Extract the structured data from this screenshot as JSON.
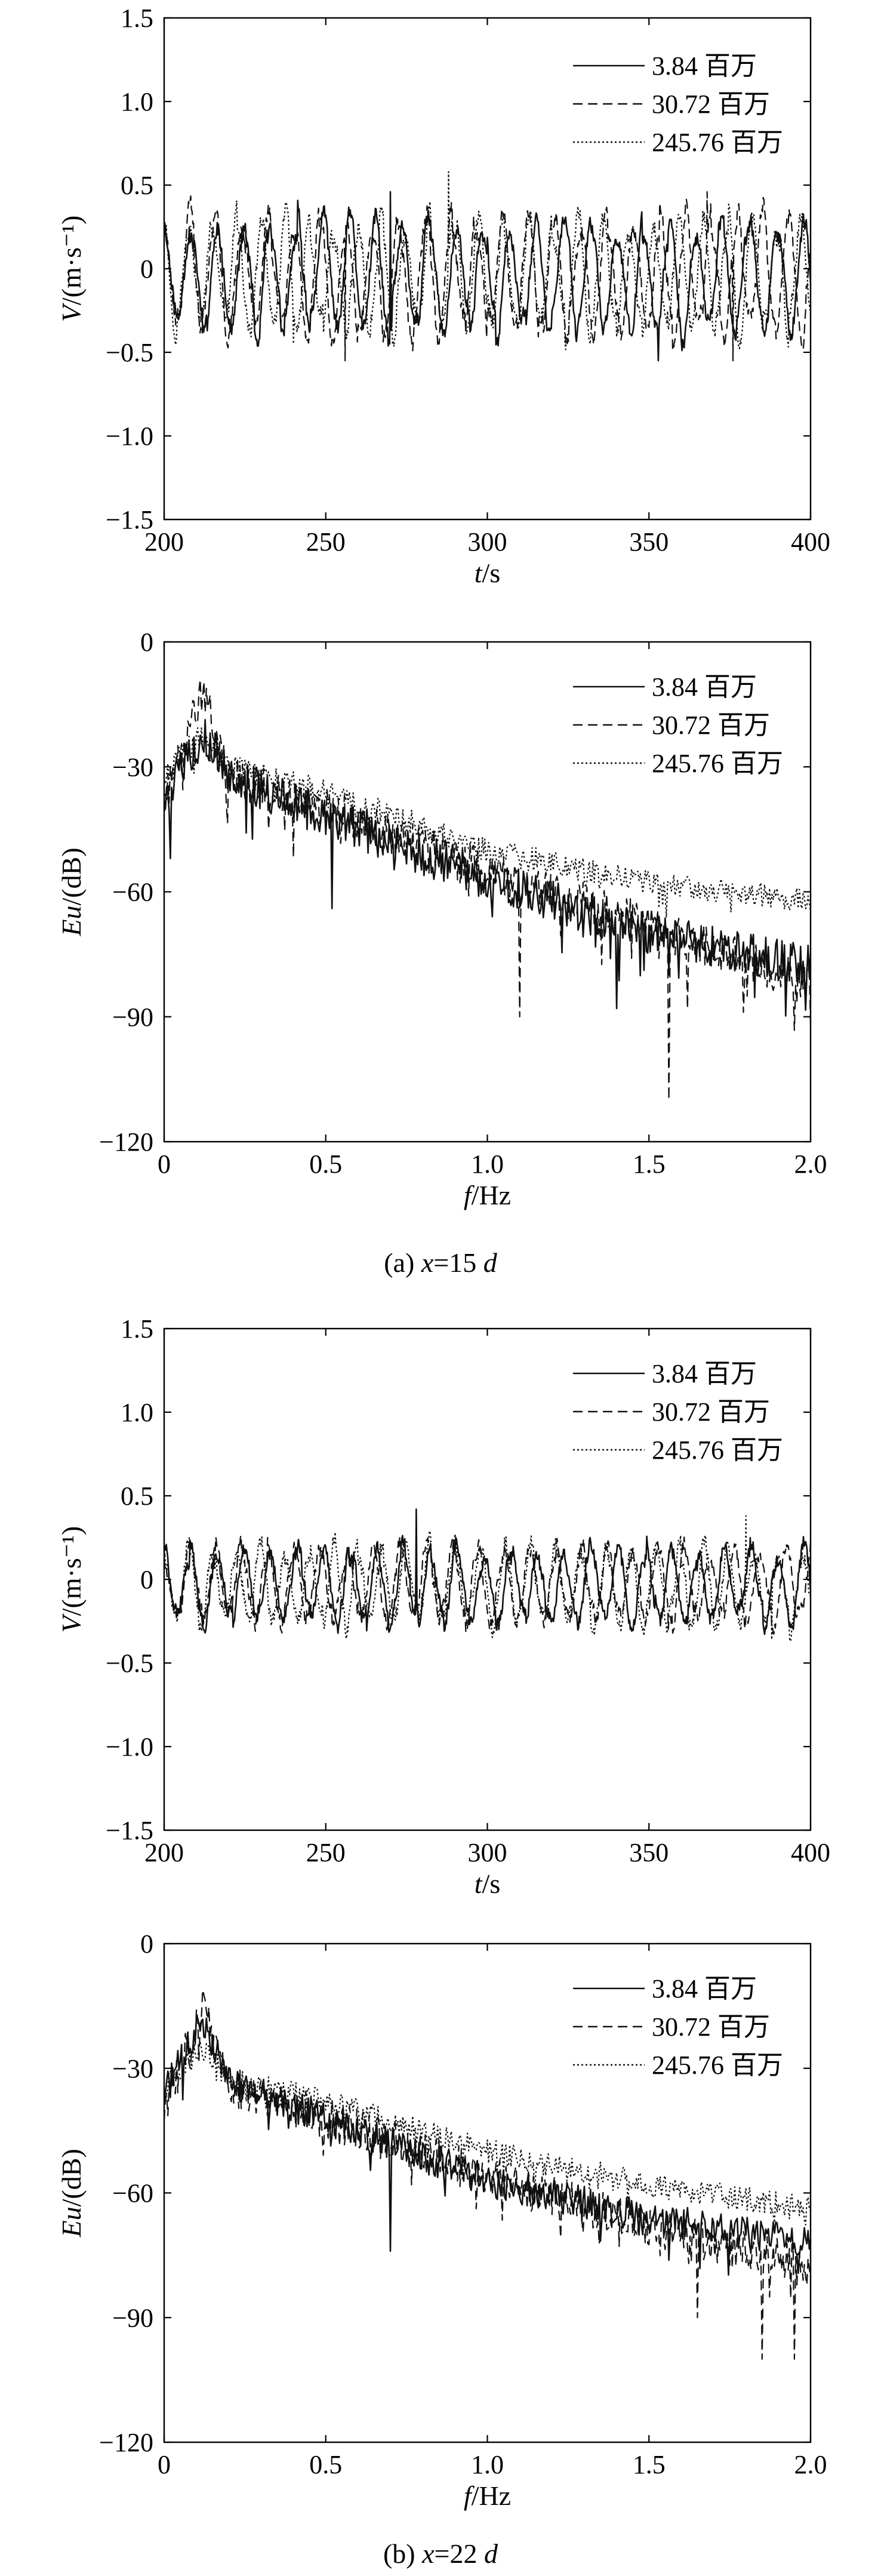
{
  "legend_labels": [
    "3.84 百万",
    "30.72 百万",
    "245.76 百万"
  ],
  "captions": [
    "(a) x=15 d",
    "(b) x=22 d"
  ],
  "chart_data": [
    {
      "type": "line",
      "panel": "a-time",
      "xlabel": "t/s",
      "ylabel": "V/(m·s⁻¹)",
      "xlim": [
        200,
        400
      ],
      "ylim": [
        -1.5,
        1.5
      ],
      "xticks": [
        "200",
        "250",
        "300",
        "350",
        "400"
      ],
      "yticks": [
        "1.5",
        "1.0",
        "0.5",
        "0",
        "−0.5",
        "−1.0",
        "−1.5"
      ],
      "legend": "top-right",
      "series": [
        {
          "name": "3.84 百万",
          "style": "solid",
          "x_range": [
            200,
            400
          ],
          "amplitude": 0.38,
          "period": 8.3,
          "seed": 11,
          "peaks": [
            {
              "x": 270,
              "y": 0.46
            },
            {
              "x": 353,
              "y": -0.55
            }
          ]
        },
        {
          "name": "30.72 百万",
          "style": "dashed",
          "x_range": [
            200,
            400
          ],
          "amplitude": 0.4,
          "period": 8.0,
          "seed": 23,
          "peaks": [
            {
              "x": 256,
              "y": -0.55
            },
            {
              "x": 368,
              "y": 0.46
            },
            {
              "x": 376,
              "y": -0.55
            }
          ]
        },
        {
          "name": "245.76 百万",
          "style": "dotted",
          "x_range": [
            200,
            400
          ],
          "amplitude": 0.37,
          "period": 7.6,
          "seed": 37,
          "peaks": [
            {
              "x": 288,
              "y": 0.58
            },
            {
              "x": 240,
              "y": -0.45
            }
          ]
        }
      ]
    },
    {
      "type": "line",
      "panel": "a-spectrum",
      "xlabel": "f/Hz",
      "ylabel": "Eu/(dB)",
      "xlim": [
        0,
        2.0
      ],
      "ylim": [
        -120,
        0
      ],
      "xticks": [
        "0",
        "0.5",
        "1.0",
        "1.5",
        "2.0"
      ],
      "yticks": [
        "0",
        "−30",
        "−60",
        "−90",
        "−120"
      ],
      "legend": "top-right",
      "series": [
        {
          "name": "3.84 百万",
          "style": "solid",
          "x_range": [
            0,
            2.0
          ],
          "levels": [
            [
              0,
              -38
            ],
            [
              0.12,
              -22
            ],
            [
              0.2,
              -32
            ],
            [
              0.5,
              -42
            ],
            [
              1.0,
              -57
            ],
            [
              1.5,
              -70
            ],
            [
              2.0,
              -78
            ]
          ],
          "noise": 5,
          "seed": 5,
          "peaks": [
            {
              "x": 0.02,
              "y": -52
            },
            {
              "x": 0.52,
              "y": -64
            },
            {
              "x": 1.4,
              "y": -88
            },
            {
              "x": 1.56,
              "y": -80
            }
          ]
        },
        {
          "name": "30.72 百万",
          "style": "dashed",
          "x_range": [
            0,
            2.0
          ],
          "levels": [
            [
              0,
              -38
            ],
            [
              0.12,
              -12
            ],
            [
              0.2,
              -32
            ],
            [
              0.5,
              -40
            ],
            [
              1.0,
              -55
            ],
            [
              1.5,
              -68
            ],
            [
              2.0,
              -82
            ]
          ],
          "noise": 5,
          "seed": 9,
          "peaks": [
            {
              "x": 1.1,
              "y": -90
            },
            {
              "x": 1.56,
              "y": -110
            },
            {
              "x": 1.62,
              "y": -88
            },
            {
              "x": 2.0,
              "y": -92
            }
          ]
        },
        {
          "name": "245.76 百万",
          "style": "dotted",
          "x_range": [
            0,
            2.0
          ],
          "levels": [
            [
              0,
              -32
            ],
            [
              0.12,
              -22
            ],
            [
              0.2,
              -30
            ],
            [
              0.5,
              -36
            ],
            [
              1.0,
              -50
            ],
            [
              1.5,
              -58
            ],
            [
              2.0,
              -62
            ]
          ],
          "noise": 3,
          "seed": 15,
          "peaks": []
        }
      ]
    },
    {
      "type": "line",
      "panel": "b-time",
      "xlabel": "t/s",
      "ylabel": "V/(m·s⁻¹)",
      "xlim": [
        200,
        400
      ],
      "ylim": [
        -1.5,
        1.5
      ],
      "xticks": [
        "200",
        "250",
        "300",
        "350",
        "400"
      ],
      "yticks": [
        "1.5",
        "1.0",
        "0.5",
        "0",
        "−0.5",
        "−1.0",
        "−1.5"
      ],
      "legend": "top-right",
      "series": [
        {
          "name": "3.84 百万",
          "style": "solid",
          "x_range": [
            200,
            400
          ],
          "amplitude": 0.24,
          "period": 8.3,
          "seed": 41,
          "peaks": [
            {
              "x": 278,
              "y": 0.42
            }
          ]
        },
        {
          "name": "30.72 百万",
          "style": "dashed",
          "x_range": [
            200,
            400
          ],
          "amplitude": 0.25,
          "period": 8.0,
          "seed": 53,
          "peaks": [
            {
              "x": 356,
              "y": -0.3
            }
          ]
        },
        {
          "name": "245.76 百万",
          "style": "dotted",
          "x_range": [
            200,
            400
          ],
          "amplitude": 0.26,
          "period": 7.6,
          "seed": 67,
          "peaks": [
            {
              "x": 380,
              "y": 0.38
            },
            {
              "x": 388,
              "y": -0.36
            }
          ]
        }
      ]
    },
    {
      "type": "line",
      "panel": "b-spectrum",
      "xlabel": "f/Hz",
      "ylabel": "Eu/(dB)",
      "xlim": [
        0,
        2.0
      ],
      "ylim": [
        -120,
        0
      ],
      "xticks": [
        "0",
        "0.5",
        "1.0",
        "1.5",
        "2.0"
      ],
      "yticks": [
        "0",
        "−30",
        "−60",
        "−90",
        "−120"
      ],
      "legend": "top-right",
      "series": [
        {
          "name": "3.84 百万",
          "style": "solid",
          "x_range": [
            0,
            2.0
          ],
          "levels": [
            [
              0,
              -36
            ],
            [
              0.12,
              -18
            ],
            [
              0.2,
              -33
            ],
            [
              0.5,
              -42
            ],
            [
              1.0,
              -57
            ],
            [
              1.5,
              -66
            ],
            [
              2.0,
              -72
            ]
          ],
          "noise": 4,
          "seed": 71,
          "peaks": [
            {
              "x": 0.7,
              "y": -74
            }
          ]
        },
        {
          "name": "30.72 百万",
          "style": "dashed",
          "x_range": [
            0,
            2.0
          ],
          "levels": [
            [
              0,
              -40
            ],
            [
              0.12,
              -15
            ],
            [
              0.2,
              -34
            ],
            [
              0.5,
              -42
            ],
            [
              1.0,
              -56
            ],
            [
              1.5,
              -68
            ],
            [
              2.0,
              -78
            ]
          ],
          "noise": 5,
          "seed": 83,
          "peaks": [
            {
              "x": 1.85,
              "y": -100
            },
            {
              "x": 1.95,
              "y": -100
            },
            {
              "x": 1.65,
              "y": -90
            }
          ]
        },
        {
          "name": "245.76 百万",
          "style": "dotted",
          "x_range": [
            0,
            2.0
          ],
          "levels": [
            [
              0,
              -34
            ],
            [
              0.12,
              -25
            ],
            [
              0.2,
              -33
            ],
            [
              0.5,
              -38
            ],
            [
              1.0,
              -50
            ],
            [
              1.5,
              -58
            ],
            [
              2.0,
              -64
            ]
          ],
          "noise": 3,
          "seed": 97,
          "peaks": []
        }
      ]
    }
  ]
}
